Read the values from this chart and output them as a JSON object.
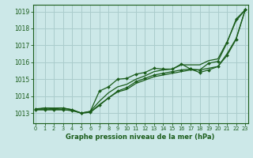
{
  "title": "Graphe pression niveau de la mer (hPa)",
  "xlabel_ticks": [
    0,
    1,
    2,
    3,
    4,
    5,
    6,
    7,
    8,
    9,
    10,
    11,
    12,
    13,
    14,
    15,
    16,
    17,
    18,
    19,
    20,
    21,
    22,
    23
  ],
  "ylim": [
    1012.4,
    1019.4
  ],
  "yticks": [
    1013,
    1014,
    1015,
    1016,
    1017,
    1018,
    1019
  ],
  "xlim": [
    -0.3,
    23.3
  ],
  "bg_color": "#cce8e8",
  "grid_color": "#aacccc",
  "line_color": "#1a5c1a",
  "series": {
    "line_smooth_high": [
      1013.2,
      1013.3,
      1013.3,
      1013.3,
      1013.2,
      1013.0,
      1013.1,
      1013.7,
      1014.2,
      1014.55,
      1014.7,
      1015.0,
      1015.2,
      1015.45,
      1015.55,
      1015.6,
      1015.85,
      1015.85,
      1015.85,
      1016.1,
      1016.2,
      1017.2,
      1018.45,
      1019.1
    ],
    "line_smooth_low": [
      1013.2,
      1013.2,
      1013.2,
      1013.2,
      1013.15,
      1013.0,
      1013.05,
      1013.5,
      1013.9,
      1014.25,
      1014.4,
      1014.75,
      1014.95,
      1015.15,
      1015.25,
      1015.35,
      1015.45,
      1015.55,
      1015.55,
      1015.65,
      1015.75,
      1016.5,
      1017.4,
      1019.1
    ],
    "line_marked_upper": [
      1013.25,
      1013.3,
      1013.25,
      1013.3,
      1013.2,
      1013.0,
      1013.1,
      1014.3,
      1014.55,
      1015.0,
      1015.05,
      1015.3,
      1015.4,
      1015.65,
      1015.6,
      1015.6,
      1015.9,
      1015.6,
      1015.55,
      1015.95,
      1016.05,
      1017.15,
      1018.55,
      1019.1
    ],
    "line_marked_lower": [
      1013.2,
      1013.2,
      1013.2,
      1013.2,
      1013.15,
      1013.0,
      1013.05,
      1013.45,
      1013.9,
      1014.3,
      1014.5,
      1014.85,
      1015.05,
      1015.25,
      1015.35,
      1015.45,
      1015.55,
      1015.6,
      1015.4,
      1015.55,
      1015.75,
      1016.4,
      1017.35,
      1019.1
    ]
  }
}
